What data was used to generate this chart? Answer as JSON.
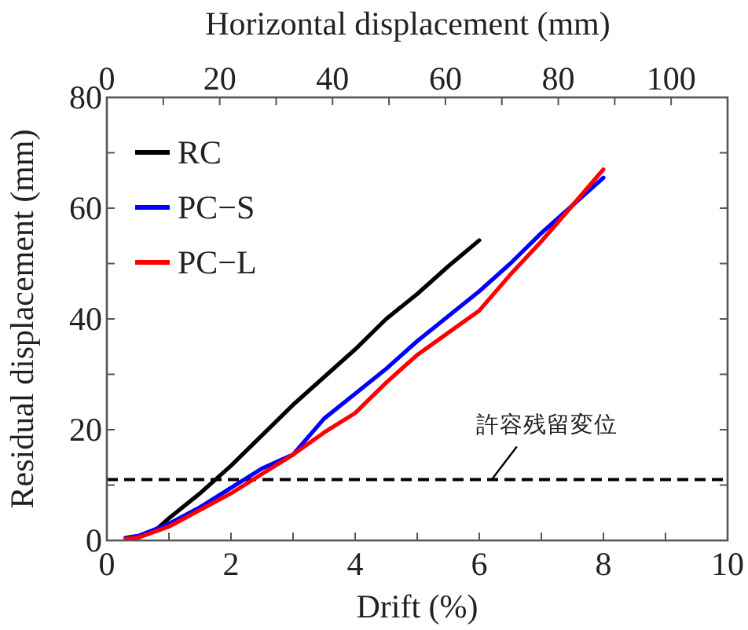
{
  "chart_data": {
    "type": "line",
    "xlabel": "Drift (%)",
    "ylabel": "Residual displacement (mm)",
    "x2label": "Horizontal displacement (mm)",
    "xlim": [
      0,
      10
    ],
    "xticks": [
      0,
      {
        "value": 1,
        "label": null
      },
      2,
      {
        "value": 3,
        "label": null
      },
      4,
      {
        "value": 5,
        "label": null
      },
      6,
      {
        "value": 7,
        "label": null
      },
      8,
      {
        "value": 9,
        "label": null
      },
      10
    ],
    "x2lim": [
      0,
      110
    ],
    "x2ticks": [
      0,
      {
        "value": 10,
        "label": null
      },
      20,
      {
        "value": 30,
        "label": null
      },
      40,
      {
        "value": 50,
        "label": null
      },
      60,
      {
        "value": 70,
        "label": null
      },
      80,
      {
        "value": 90,
        "label": null
      },
      100
    ],
    "ylim": [
      0,
      80
    ],
    "yticks": [
      0,
      {
        "value": 10,
        "label": null
      },
      20,
      {
        "value": 30,
        "label": null
      },
      40,
      {
        "value": 50,
        "label": null
      },
      60,
      {
        "value": 70,
        "label": null
      },
      80
    ],
    "legend": "top left",
    "grid": false,
    "marker": "none",
    "line_style": "solid",
    "series": [
      {
        "name": "RC",
        "color": "#000000",
        "x": [
          0.5,
          0.8,
          1,
          1.5,
          2,
          2.5,
          3,
          3.5,
          4,
          4.5,
          5,
          5.5,
          6
        ],
        "values": [
          0.5,
          2,
          4,
          8.5,
          13.5,
          19,
          24.5,
          29.5,
          34.5,
          40,
          44.5,
          49.5,
          54.2
        ]
      },
      {
        "name": "PC−S",
        "color": "#0000ff",
        "x": [
          0.3,
          0.5,
          1,
          1.5,
          2,
          2.5,
          3,
          3.5,
          4,
          4.5,
          5,
          5.5,
          6,
          6.5,
          7,
          7.5,
          8
        ],
        "values": [
          0.5,
          0.8,
          3,
          6,
          9.5,
          13,
          15.5,
          22,
          26.5,
          31,
          36,
          40.5,
          45,
          50,
          55.5,
          60.5,
          65.5
        ]
      },
      {
        "name": "PC−L",
        "color": "#ff0000",
        "x": [
          0.3,
          0.5,
          1,
          1.5,
          2,
          2.5,
          3,
          3.5,
          4,
          4.5,
          5,
          5.5,
          6,
          6.5,
          7,
          7.5,
          8
        ],
        "values": [
          0.3,
          0.5,
          2.5,
          5.5,
          8.5,
          12,
          15.5,
          19.5,
          23,
          28.5,
          33.5,
          37.5,
          41.5,
          48,
          54,
          60.5,
          67
        ]
      }
    ],
    "ref_lines": [
      {
        "axis": "y",
        "value": 11,
        "color": "#000000",
        "line_style": "dashed"
      }
    ],
    "annotations": [
      {
        "text": "許容残留変位",
        "x": 6.2,
        "y": 11
      }
    ]
  }
}
